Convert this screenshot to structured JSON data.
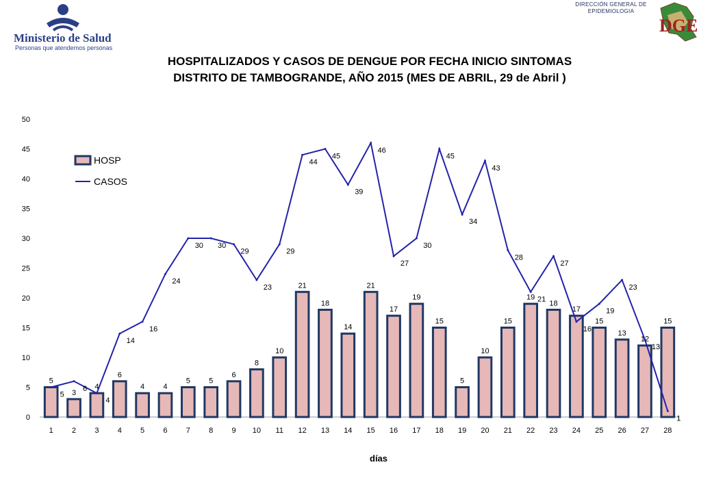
{
  "header": {
    "org_name": "Ministerio de Salud",
    "org_tagline": "Personas que atendemos personas",
    "dge_line1": "DIRECCIÓN GENERAL DE",
    "dge_line2": "EPIDEMIOLOGIA",
    "dge_logo_text": "DGE"
  },
  "title": {
    "line1": "HOSPITALIZADOS Y CASOS DE DENGUE POR FECHA INICIO SINTOMAS",
    "line2": "DISTRITO DE TAMBOGRANDE, AÑO 2015 (MES DE ABRIL, 29 de Abril )"
  },
  "chart_data": {
    "type": "bar",
    "title": "HOSPITALIZADOS Y CASOS DE DENGUE POR FECHA INICIO SINTOMAS DISTRITO DE TAMBOGRANDE, AÑO 2015 (MES DE ABRIL, 29 de Abril )",
    "xlabel": "días",
    "ylabel": "",
    "ylim": [
      0,
      50
    ],
    "yticks": [
      0,
      5,
      10,
      15,
      20,
      25,
      30,
      35,
      40,
      45,
      50
    ],
    "grid": false,
    "legend_position": "top-left",
    "categories": [
      "1",
      "2",
      "3",
      "4",
      "5",
      "6",
      "7",
      "8",
      "9",
      "10",
      "11",
      "12",
      "13",
      "14",
      "15",
      "16",
      "17",
      "18",
      "19",
      "20",
      "21",
      "22",
      "23",
      "24",
      "25",
      "26",
      "27",
      "28"
    ],
    "series": [
      {
        "name": "HOSP",
        "type": "bar",
        "color": "#e6b8b7",
        "edge_color": "#1f3864",
        "values": [
          5,
          3,
          4,
          6,
          4,
          4,
          5,
          5,
          6,
          8,
          10,
          21,
          18,
          14,
          21,
          17,
          19,
          15,
          5,
          10,
          15,
          19,
          18,
          17,
          15,
          13,
          12,
          15
        ]
      },
      {
        "name": "CASOS",
        "type": "line",
        "color": "#2222aa",
        "values": [
          5,
          6,
          4,
          14,
          16,
          24,
          30,
          30,
          29,
          23,
          29,
          44,
          45,
          39,
          46,
          27,
          30,
          45,
          34,
          43,
          28,
          21,
          27,
          16,
          19,
          23,
          13,
          1
        ]
      }
    ]
  }
}
